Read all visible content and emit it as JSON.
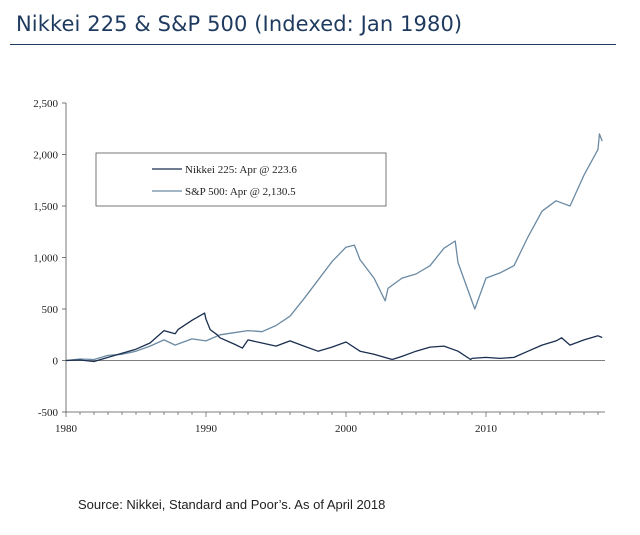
{
  "header": {
    "title": "Nikkei 225 & S&P 500 (Indexed: Jan 1980)"
  },
  "footer": {
    "source": "Source: Nikkei, Standard and Poor’s. As of April 2018"
  },
  "colors": {
    "title": "#1f3a5f",
    "nikkei": "#1a2e4f",
    "sp500": "#6b8aa3",
    "axis": "#555555"
  },
  "chart_data": {
    "type": "line",
    "title": "Nikkei 225 & S&P 500 (Indexed: Jan 1980)",
    "xlabel": "",
    "ylabel": "",
    "xlim": [
      1980,
      2018.5
    ],
    "ylim": [
      -500,
      2500
    ],
    "x_ticks": [
      "1980",
      "1990",
      "2000",
      "2010"
    ],
    "y_ticks": [
      "2,500",
      "2,000",
      "1,500",
      "1,000",
      "500",
      "0",
      "-500"
    ],
    "grid": false,
    "legend": "top-left",
    "series": [
      {
        "name": "Nikkei 225: Apr @ 223.6",
        "color": "#1a2e4f",
        "x": [
          1980,
          1981,
          1982,
          1983,
          1984,
          1985,
          1986,
          1987,
          1987.8,
          1988,
          1989,
          1989.9,
          1990,
          1990.3,
          1990.8,
          1991,
          1992,
          1992.6,
          1993,
          1994,
          1995,
          1996,
          1997,
          1998,
          1999,
          2000,
          2001,
          2002,
          2003.3,
          2004,
          2005,
          2006,
          2007,
          2008,
          2008.9,
          2009,
          2010,
          2011,
          2012,
          2013,
          2014,
          2015,
          2015.4,
          2016,
          2017,
          2018,
          2018.3
        ],
        "values": [
          0,
          5,
          -10,
          30,
          70,
          110,
          170,
          290,
          260,
          300,
          390,
          460,
          400,
          300,
          250,
          220,
          160,
          120,
          200,
          170,
          140,
          190,
          140,
          90,
          130,
          180,
          90,
          60,
          10,
          40,
          90,
          130,
          140,
          90,
          10,
          20,
          30,
          20,
          30,
          90,
          150,
          190,
          220,
          150,
          200,
          240,
          223.6
        ]
      },
      {
        "name": "S&P 500: Apr @ 2,130.5",
        "color": "#6b8aa3",
        "x": [
          1980,
          1981,
          1982,
          1983,
          1984,
          1985,
          1986,
          1987,
          1987.8,
          1988,
          1989,
          1990,
          1991,
          1992,
          1993,
          1994,
          1995,
          1996,
          1997,
          1998,
          1999,
          2000,
          2000.6,
          2001,
          2002,
          2002.8,
          2003,
          2004,
          2005,
          2006,
          2007,
          2007.8,
          2008,
          2009.2,
          2010,
          2011,
          2012,
          2013,
          2014,
          2015,
          2016,
          2017,
          2018,
          2018.1,
          2018.3
        ],
        "values": [
          0,
          15,
          10,
          50,
          60,
          90,
          140,
          200,
          150,
          160,
          210,
          190,
          250,
          270,
          290,
          280,
          340,
          430,
          600,
          780,
          960,
          1100,
          1120,
          980,
          800,
          580,
          700,
          800,
          840,
          920,
          1090,
          1160,
          950,
          500,
          800,
          850,
          920,
          1200,
          1450,
          1550,
          1500,
          1800,
          2050,
          2200,
          2130.5
        ]
      }
    ]
  }
}
